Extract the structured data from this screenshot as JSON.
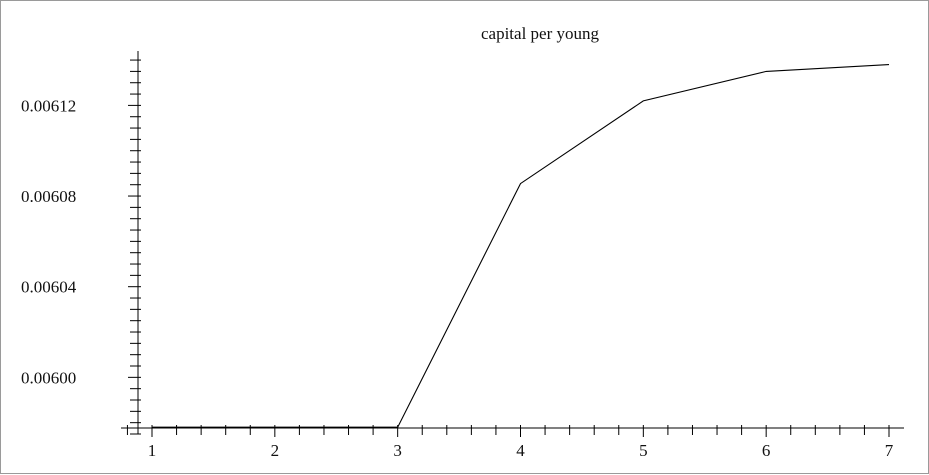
{
  "chart_data": {
    "type": "line",
    "title": "capital per young",
    "xlabel": "",
    "ylabel": "",
    "x": [
      1,
      2,
      3,
      4,
      5,
      6,
      7
    ],
    "series": [
      {
        "values": [
          0.005978,
          0.005978,
          0.005978,
          0.0060855,
          0.006122,
          0.006135,
          0.006138
        ]
      }
    ],
    "xlim": [
      1,
      7
    ],
    "ylim": [
      0.005975,
      0.006144
    ],
    "xticks": [
      "1",
      "2",
      "3",
      "4",
      "5",
      "6",
      "7"
    ],
    "yticks": [
      {
        "value": 0.006,
        "label": "0.00600"
      },
      {
        "value": 0.00604,
        "label": "0.00604"
      },
      {
        "value": 0.00608,
        "label": "0.00608"
      },
      {
        "value": 0.00612,
        "label": "0.00612"
      }
    ],
    "grid": false,
    "legend": "none",
    "colors": {
      "line": "#000000",
      "axis": "#000000",
      "frame": "#9a9a9a"
    }
  }
}
